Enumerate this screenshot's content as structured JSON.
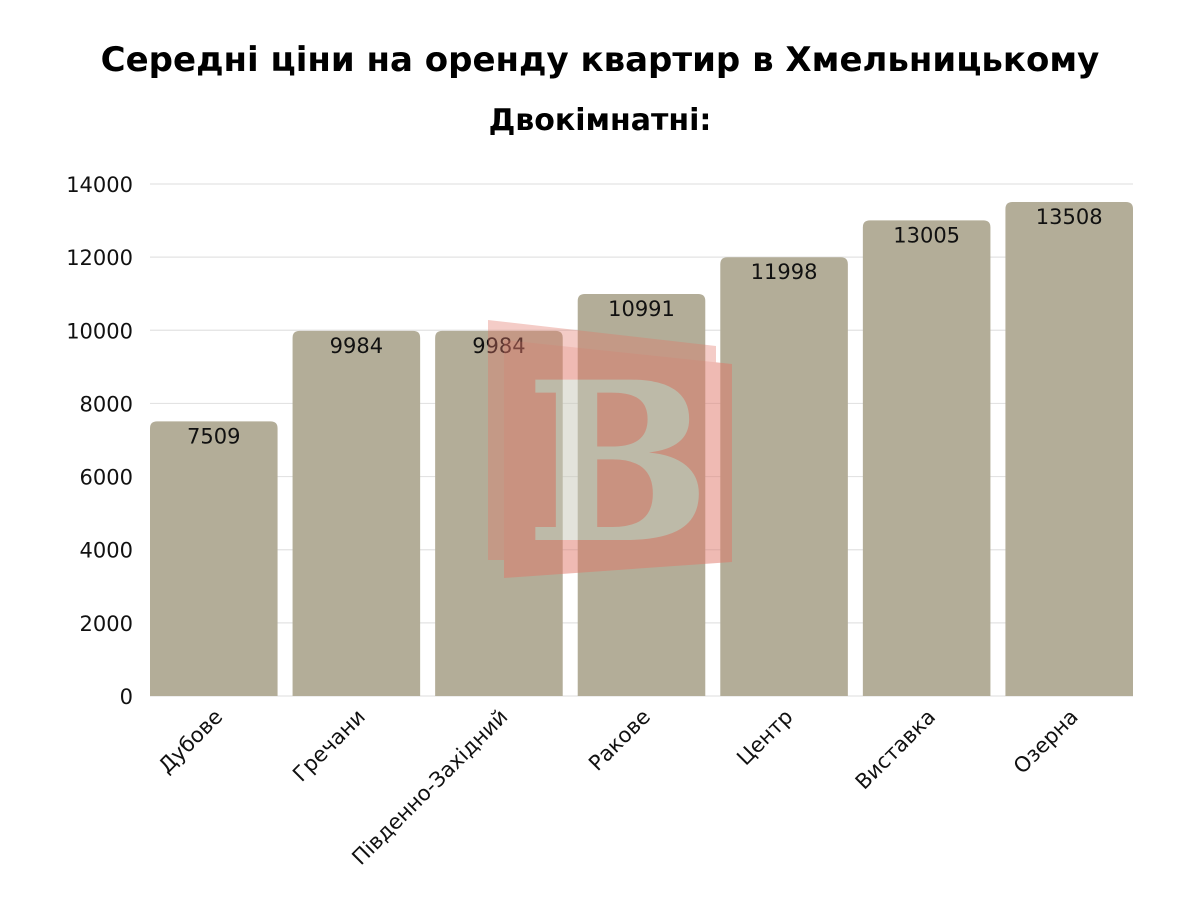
{
  "chart_data": {
    "type": "bar",
    "title": "Середні ціни на оренду квартир в Хмельницькому",
    "subtitle": "Двокімнатні:",
    "categories": [
      "Дубове",
      "Гречани",
      "Південно-Західний",
      "Ракове",
      "Центр",
      "Виставка",
      "Озерна"
    ],
    "values": [
      7509,
      9984,
      9984,
      10991,
      11998,
      13005,
      13508
    ],
    "yticks": [
      0,
      2000,
      4000,
      6000,
      8000,
      10000,
      12000,
      14000
    ],
    "ylim": [
      0,
      14000
    ],
    "xlabel": "",
    "ylabel": "",
    "grid": true,
    "bar_color": "#b3ad98",
    "grid_color": "#e3e3e3",
    "watermark_letter": "B",
    "watermark_color": "#e0786a"
  }
}
